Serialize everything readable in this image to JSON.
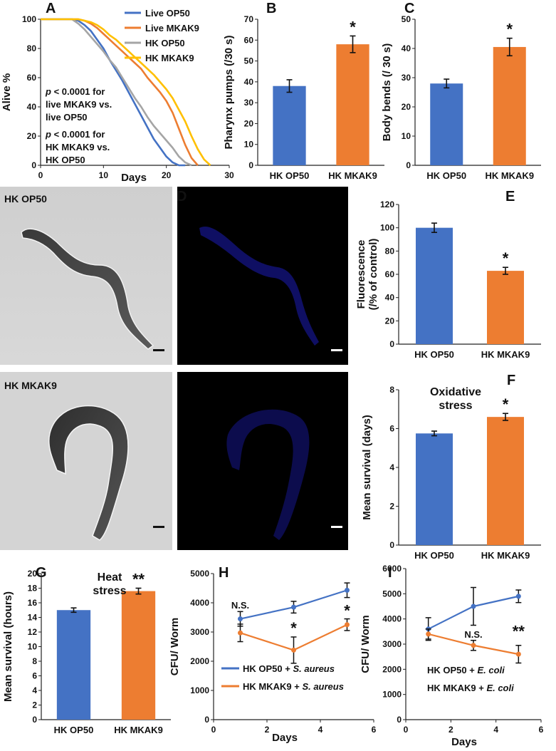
{
  "colors": {
    "blue": "#4472c4",
    "orange": "#ed7d31",
    "gray": "#a5a5a5",
    "yellow": "#ffc000"
  },
  "chart_data": [
    {
      "id": "A",
      "type": "line",
      "panel_label": "A",
      "xlabel": "Days",
      "ylabel": "Alive %",
      "xlim": [
        0,
        30
      ],
      "ylim": [
        0,
        100
      ],
      "xticks": [
        "0",
        "10",
        "20",
        "30"
      ],
      "yticks": [
        "0",
        "20",
        "40",
        "60",
        "80",
        "100"
      ],
      "annotations": [
        "p < 0.0001 for",
        "live MKAK9 vs.",
        "live OP50",
        "p < 0.0001 for",
        "HK MKAK9 vs.",
        "HK OP50"
      ],
      "series": [
        {
          "name": "Live OP50",
          "color": "#4472c4",
          "x": [
            0,
            5,
            6,
            7,
            8,
            9,
            10,
            11,
            12,
            13,
            14,
            15,
            16,
            17,
            18,
            19,
            20,
            21,
            22,
            23
          ],
          "y": [
            100,
            100,
            99,
            96,
            92,
            86,
            80,
            72,
            65,
            58,
            50,
            42,
            34,
            26,
            18,
            12,
            6,
            2,
            0,
            0
          ]
        },
        {
          "name": "Live MKAK9",
          "color": "#ed7d31",
          "x": [
            0,
            6,
            7,
            8,
            9,
            10,
            11,
            12,
            13,
            14,
            15,
            16,
            17,
            18,
            19,
            20,
            21,
            22,
            23,
            24,
            25
          ],
          "y": [
            100,
            100,
            99,
            97,
            94,
            90,
            86,
            82,
            78,
            74,
            70,
            66,
            60,
            55,
            50,
            44,
            36,
            25,
            14,
            5,
            0
          ]
        },
        {
          "name": "HK OP50",
          "color": "#a5a5a5",
          "x": [
            0,
            5,
            6,
            7,
            8,
            9,
            10,
            11,
            12,
            13,
            14,
            15,
            16,
            17,
            18,
            19,
            20,
            21,
            22,
            23,
            24
          ],
          "y": [
            100,
            100,
            97,
            93,
            88,
            83,
            78,
            72,
            67,
            60,
            53,
            46,
            40,
            33,
            27,
            22,
            17,
            12,
            6,
            2,
            0
          ]
        },
        {
          "name": "HK MKAK9",
          "color": "#ffc000",
          "x": [
            0,
            6,
            7,
            8,
            9,
            10,
            11,
            12,
            13,
            14,
            15,
            16,
            17,
            18,
            19,
            20,
            21,
            22,
            23,
            24,
            25,
            26,
            27
          ],
          "y": [
            100,
            100,
            99,
            98,
            96,
            93,
            89,
            86,
            82,
            78,
            74,
            70,
            66,
            62,
            57,
            52,
            46,
            38,
            30,
            20,
            11,
            4,
            0
          ]
        }
      ]
    },
    {
      "id": "B",
      "type": "bar",
      "panel_label": "B",
      "ylabel": "Pharynx pumps (/30 s)",
      "ylim": [
        0,
        70
      ],
      "yticks": [
        "0",
        "10",
        "20",
        "30",
        "40",
        "50",
        "60",
        "70"
      ],
      "categories": [
        "HK OP50",
        "HK MKAK9"
      ],
      "values": [
        38,
        58
      ],
      "errors": [
        3,
        4
      ],
      "colors": [
        "#4472c4",
        "#ed7d31"
      ],
      "significance": [
        "",
        "*"
      ]
    },
    {
      "id": "C",
      "type": "bar",
      "panel_label": "C",
      "ylabel": "Body bends (/ 30 s)",
      "ylim": [
        0,
        50
      ],
      "yticks": [
        "0",
        "10",
        "20",
        "30",
        "40",
        "50"
      ],
      "categories": [
        "HK OP50",
        "HK MKAK9"
      ],
      "values": [
        28,
        40.5
      ],
      "errors": [
        1.5,
        3
      ],
      "colors": [
        "#4472c4",
        "#ed7d31"
      ],
      "significance": [
        "",
        "*"
      ]
    },
    {
      "id": "E",
      "type": "bar",
      "panel_label": "E",
      "ylabel": "Fluorescence (/% of control)",
      "ylabel_lines": [
        "Fluorescence",
        "(/% of control)"
      ],
      "ylim": [
        0,
        120
      ],
      "yticks": [
        "0",
        "20",
        "40",
        "60",
        "80",
        "100",
        "120"
      ],
      "categories": [
        "HK OP50",
        "HK MKAK9"
      ],
      "values": [
        100,
        63
      ],
      "errors": [
        4,
        3
      ],
      "colors": [
        "#4472c4",
        "#ed7d31"
      ],
      "significance": [
        "",
        "*"
      ]
    },
    {
      "id": "F",
      "type": "bar",
      "panel_label": "F",
      "title": "Oxidative stress",
      "title_lines": [
        "Oxidative",
        "stress"
      ],
      "ylabel": "Mean survival (days)",
      "ylim": [
        0,
        8
      ],
      "yticks": [
        "0",
        "2",
        "4",
        "6",
        "8"
      ],
      "categories": [
        "HK OP50",
        "HK MKAK9"
      ],
      "values": [
        5.75,
        6.6
      ],
      "errors": [
        0.12,
        0.18
      ],
      "colors": [
        "#4472c4",
        "#ed7d31"
      ],
      "significance": [
        "",
        "*"
      ]
    },
    {
      "id": "G",
      "type": "bar",
      "panel_label": "G",
      "title": "Heat stress",
      "title_lines": [
        "Heat",
        "stress"
      ],
      "ylabel": "Mean survival (hours)",
      "ylim": [
        0,
        20
      ],
      "yticks": [
        "0",
        "2",
        "4",
        "6",
        "8",
        "10",
        "12",
        "14",
        "16",
        "18",
        "20"
      ],
      "categories": [
        "HK OP50",
        "HK MKAK9"
      ],
      "values": [
        15,
        17.6
      ],
      "errors": [
        0.3,
        0.4
      ],
      "colors": [
        "#4472c4",
        "#ed7d31"
      ],
      "significance": [
        "",
        "**"
      ]
    },
    {
      "id": "H",
      "type": "line",
      "panel_label": "H",
      "xlabel": "Days",
      "ylabel": "CFU/ Worm",
      "xlim": [
        0,
        6
      ],
      "ylim": [
        0,
        5000
      ],
      "xticks": [
        "0",
        "2",
        "4",
        "6"
      ],
      "yticks": [
        "0",
        "1000",
        "2000",
        "3000",
        "4000",
        "5000"
      ],
      "series": [
        {
          "name": "HK OP50 + ",
          "name_italic": "S. aureus",
          "color": "#4472c4",
          "x": [
            1,
            3,
            5
          ],
          "y": [
            3450,
            3850,
            4430
          ],
          "errors": [
            250,
            200,
            250
          ]
        },
        {
          "name": "HK MKAK9 + ",
          "name_italic": "S. aureus",
          "color": "#ed7d31",
          "x": [
            1,
            3,
            5
          ],
          "y": [
            2970,
            2380,
            3250
          ],
          "errors": [
            300,
            450,
            200
          ]
        }
      ],
      "point_labels": [
        {
          "text": "N.S.",
          "x": 1,
          "y": 3800
        },
        {
          "text": "*",
          "x": 3,
          "y": 2950
        },
        {
          "text": "*",
          "x": 5,
          "y": 3550
        }
      ]
    },
    {
      "id": "I",
      "type": "line",
      "panel_label": "I",
      "xlabel": "Days",
      "ylabel": "CFU/ Worm",
      "xlim": [
        0,
        6
      ],
      "ylim": [
        0,
        6000
      ],
      "xticks": [
        "0",
        "2",
        "4",
        "6"
      ],
      "yticks": [
        "0",
        "1000",
        "2000",
        "3000",
        "4000",
        "5000",
        "6000"
      ],
      "series": [
        {
          "name": "HK OP50 + ",
          "name_italic": "E. coli",
          "color": "#4472c4",
          "x": [
            1,
            3,
            5
          ],
          "y": [
            3600,
            4500,
            4900
          ],
          "errors": [
            450,
            750,
            250
          ]
        },
        {
          "name": "HK MKAK9 + ",
          "name_italic": "E. coli",
          "color": "#ed7d31",
          "x": [
            1,
            3,
            5
          ],
          "y": [
            3400,
            2950,
            2600
          ],
          "errors": [
            200,
            200,
            350
          ]
        }
      ],
      "point_labels": [
        {
          "text": "N.S.",
          "x": 3,
          "y": 3250
        },
        {
          "text": "**",
          "x": 5,
          "y": 3300
        }
      ]
    }
  ],
  "images": {
    "panel_label": "D",
    "top_label": "HK OP50",
    "bottom_label": "HK MKAK9"
  }
}
